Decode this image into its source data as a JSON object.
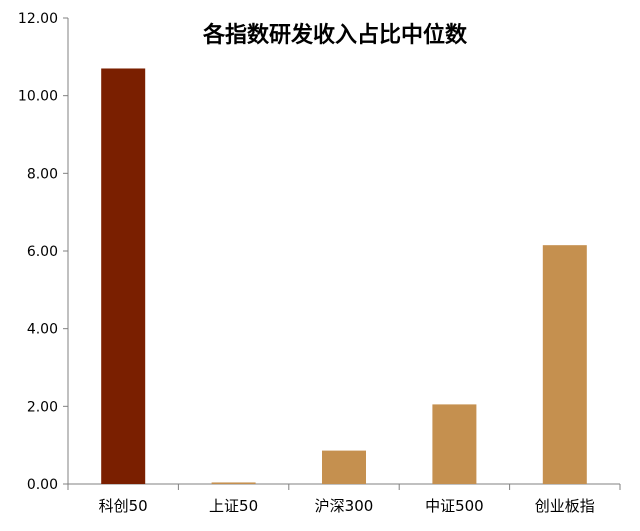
{
  "chart_data": {
    "type": "bar",
    "title": "各指数研发收入占比中位数",
    "xlabel": "",
    "ylabel": "",
    "categories": [
      "科创50",
      "上证50",
      "沪深300",
      "中证500",
      "创业板指"
    ],
    "values": [
      10.7,
      0.04,
      0.86,
      2.05,
      6.15
    ],
    "colors": [
      "#7A1F00",
      "#C5904F",
      "#C5904F",
      "#C5904F",
      "#C5904F"
    ],
    "ylim": [
      0,
      12
    ],
    "yticks": [
      "0.00",
      "2.00",
      "4.00",
      "6.00",
      "8.00",
      "10.00",
      "12.00"
    ],
    "grid": false,
    "legend": "none"
  }
}
